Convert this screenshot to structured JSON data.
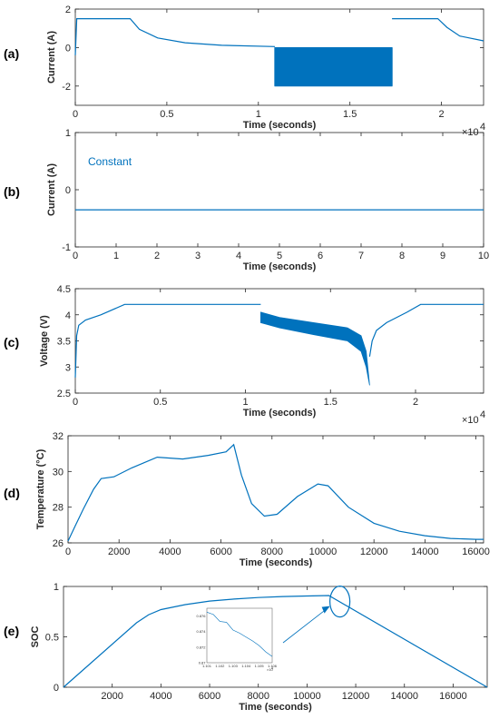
{
  "line_color": "#0072BD",
  "chart_data": [
    {
      "panel": "(a)",
      "type": "line",
      "xlabel": "Time (seconds)",
      "ylabel": "Current (A)",
      "xlim": [
        0,
        22300
      ],
      "ylim": [
        -3,
        2
      ],
      "xticks": [
        0,
        5000,
        10000,
        15000,
        20000
      ],
      "xtick_labels": [
        "0",
        "0.5",
        "1",
        "1.5",
        "2"
      ],
      "yticks": [
        -2,
        0,
        2
      ],
      "ytick_labels": [
        "-2",
        "0",
        "2"
      ],
      "x_multiplier": "×10",
      "x_multiplier_exp": "4",
      "segments": [
        {
          "x": [
            0,
            80,
            150,
            3000,
            3500,
            4500,
            6000,
            8000,
            10900
          ],
          "y": [
            -0.4,
            1.5,
            1.5,
            1.5,
            0.95,
            0.5,
            0.25,
            0.12,
            0.05
          ]
        },
        {
          "x": [
            17300,
            17350,
            19800,
            20300,
            21000,
            22300
          ],
          "y": [
            1.5,
            1.5,
            1.5,
            1.05,
            0.6,
            0.35
          ]
        }
      ],
      "pulse_band": {
        "x_start": 10900,
        "x_end": 17300,
        "y_high": 0,
        "y_low": -2
      }
    },
    {
      "panel": "(b)",
      "type": "line",
      "xlabel": "Time (seconds)",
      "ylabel": "Current (A)",
      "xlim": [
        0,
        10
      ],
      "ylim": [
        -1,
        1
      ],
      "xticks": [
        0,
        1,
        2,
        3,
        4,
        5,
        6,
        7,
        8,
        9,
        10
      ],
      "xtick_labels": [
        "0",
        "1",
        "2",
        "3",
        "4",
        "5",
        "6",
        "7",
        "8",
        "9",
        "10"
      ],
      "yticks": [
        -1,
        0,
        1
      ],
      "ytick_labels": [
        "-1",
        "0",
        "1"
      ],
      "annotation": "Constant",
      "segments": [
        {
          "x": [
            0,
            10
          ],
          "y": [
            -0.35,
            -0.35
          ]
        }
      ]
    },
    {
      "panel": "(c)",
      "type": "line",
      "xlabel": "Time (seconds)",
      "ylabel": "Voltage (V)",
      "xlim": [
        0,
        24000
      ],
      "ylim": [
        2.5,
        4.5
      ],
      "xticks": [
        0,
        5000,
        10000,
        15000,
        20000
      ],
      "xtick_labels": [
        "0",
        "0.5",
        "1",
        "1.5",
        "2"
      ],
      "yticks": [
        2.5,
        3,
        3.5,
        4,
        4.5
      ],
      "ytick_labels": [
        "2.5",
        "3",
        "3.5",
        "4",
        "4.5"
      ],
      "x_multiplier": "×10",
      "x_multiplier_exp": "4",
      "segments": [
        {
          "x": [
            0,
            80,
            200,
            600,
            1500,
            2900,
            3000,
            10900
          ],
          "y": [
            2.8,
            3.6,
            3.8,
            3.9,
            4.0,
            4.2,
            4.2,
            4.2
          ]
        },
        {
          "x": [
            17300,
            17450,
            17700,
            18300,
            19500,
            20300,
            24000
          ],
          "y": [
            3.2,
            3.5,
            3.7,
            3.85,
            4.05,
            4.2,
            4.2
          ]
        }
      ],
      "pulse_band": {
        "x": [
          10900,
          12000,
          14000,
          16000,
          16800,
          17100,
          17300
        ],
        "y_high": [
          4.05,
          3.95,
          3.85,
          3.75,
          3.6,
          3.3,
          2.65
        ],
        "y_low": [
          3.85,
          3.75,
          3.62,
          3.5,
          3.3,
          3.0,
          2.65
        ]
      }
    },
    {
      "panel": "(d)",
      "type": "line",
      "xlabel": "Time (seconds)",
      "ylabel": "Temperature (°C)",
      "xlim": [
        0,
        16300
      ],
      "ylim": [
        26,
        32
      ],
      "xticks": [
        0,
        2000,
        4000,
        6000,
        8000,
        10000,
        12000,
        14000,
        16000
      ],
      "xtick_labels": [
        "0",
        "2000",
        "4000",
        "6000",
        "8000",
        "10000",
        "12000",
        "14000",
        "16000"
      ],
      "yticks": [
        26,
        28,
        30,
        32
      ],
      "ytick_labels": [
        "26",
        "28",
        "30",
        "32"
      ],
      "segments": [
        {
          "x": [
            0,
            300,
            600,
            1000,
            1300,
            1800,
            2500,
            3500,
            4500,
            5500,
            6200,
            6500,
            6800,
            7200,
            7700,
            8200,
            9000,
            9800,
            10200,
            11000,
            12000,
            13000,
            14000,
            15000,
            16000,
            16300
          ],
          "y": [
            26.1,
            27.0,
            27.9,
            29.0,
            29.6,
            29.7,
            30.2,
            30.8,
            30.7,
            30.9,
            31.1,
            31.5,
            29.8,
            28.2,
            27.5,
            27.6,
            28.6,
            29.3,
            29.2,
            28.0,
            27.1,
            26.65,
            26.4,
            26.25,
            26.2,
            26.2
          ]
        }
      ]
    },
    {
      "panel": "(e)",
      "type": "line",
      "xlabel": "Time (seconds)",
      "ylabel": "SOC",
      "xlim": [
        0,
        17400
      ],
      "ylim": [
        0,
        1
      ],
      "xticks": [
        2000,
        4000,
        6000,
        8000,
        10000,
        12000,
        14000,
        16000
      ],
      "xtick_labels": [
        "2000",
        "4000",
        "6000",
        "8000",
        "10000",
        "12000",
        "14000",
        "16000"
      ],
      "yticks": [
        0,
        0.5,
        1
      ],
      "ytick_labels": [
        "0",
        "0.5",
        "1"
      ],
      "segments": [
        {
          "x": [
            0,
            3000,
            3500,
            4000,
            5000,
            6000,
            7000,
            8000,
            9000,
            10000,
            10900,
            17400
          ],
          "y": [
            0,
            0.64,
            0.72,
            0.77,
            0.82,
            0.855,
            0.875,
            0.89,
            0.9,
            0.905,
            0.91,
            0
          ]
        }
      ],
      "inset": {
        "xlim": [
          1.101,
          1.106
        ],
        "ylim": [
          0.87,
          0.877
        ],
        "xticks": [
          1.101,
          1.102,
          1.103,
          1.104,
          1.105,
          1.106
        ],
        "xtick_labels": [
          "1.101",
          "1.102",
          "1.103",
          "1.104",
          "1.105",
          "1.106"
        ],
        "yticks": [
          0.87,
          0.872,
          0.874,
          0.876
        ],
        "ytick_labels": [
          "0.87",
          "0.872",
          "0.874",
          "0.876"
        ],
        "x_multiplier": "×10",
        "x_multiplier_exp": "4",
        "x": [
          1.101,
          1.1015,
          1.102,
          1.1025,
          1.103,
          1.1035,
          1.104,
          1.1045,
          1.105,
          1.1055,
          1.106
        ],
        "y": [
          0.8765,
          0.8762,
          0.8753,
          0.8752,
          0.8742,
          0.8738,
          0.8733,
          0.8728,
          0.8722,
          0.8714,
          0.8708
        ]
      }
    }
  ]
}
